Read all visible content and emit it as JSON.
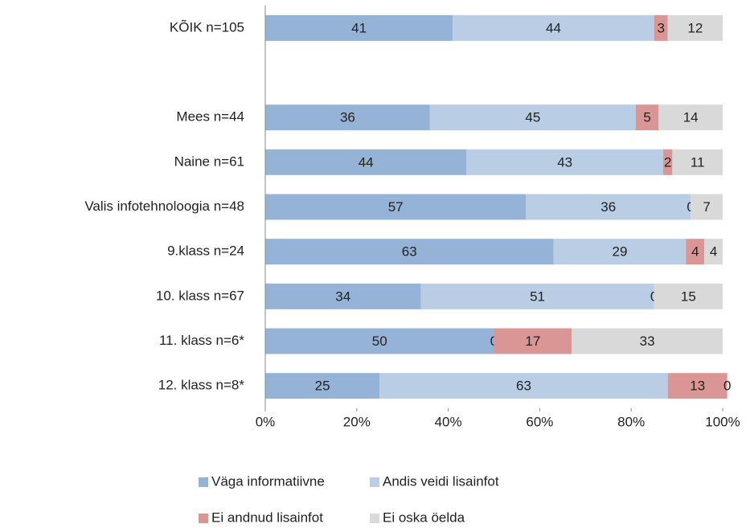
{
  "chart_data": {
    "type": "stacked-bar-horizontal",
    "categories": [
      "KÕIK n=105",
      null,
      "Mees n=44",
      "Naine n=61",
      "Valis infotehnoloogia n=48",
      "9.klass n=24",
      "10. klass n=67",
      "11. klass n=6*",
      "12. klass n=8*"
    ],
    "series": [
      {
        "name": "Väga informatiivne",
        "color": "#95b3d7",
        "values": [
          41,
          null,
          36,
          44,
          57,
          63,
          34,
          50,
          25
        ]
      },
      {
        "name": "Andis veidi lisainfot",
        "color": "#b9cde5",
        "values": [
          44,
          null,
          45,
          43,
          36,
          29,
          51,
          0,
          63
        ]
      },
      {
        "name": "Ei andnud lisainfot",
        "color": "#d99694",
        "values": [
          3,
          null,
          5,
          2,
          0,
          4,
          0,
          17,
          13
        ]
      },
      {
        "name": "Ei oska öelda",
        "color": "#d9d9d9",
        "values": [
          12,
          null,
          14,
          11,
          7,
          4,
          15,
          33,
          0
        ]
      }
    ],
    "xlim": [
      0,
      100
    ],
    "xticks": [
      {
        "value": 0,
        "label": "0%"
      },
      {
        "value": 20,
        "label": "20%"
      },
      {
        "value": 40,
        "label": "40%"
      },
      {
        "value": 60,
        "label": "60%"
      },
      {
        "value": 80,
        "label": "80%"
      },
      {
        "value": 100,
        "label": "100%"
      }
    ],
    "legend": "bottom"
  }
}
